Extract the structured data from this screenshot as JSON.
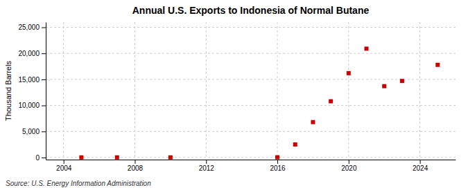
{
  "chart_data": {
    "type": "scatter",
    "title": "Annual U.S. Exports to Indonesia of Normal Butane",
    "ylabel": "Thousand Barrels",
    "source": "Source: U.S. Energy Information Administration",
    "x": [
      2005,
      2007,
      2010,
      2016,
      2017,
      2018,
      2019,
      2020,
      2021,
      2022,
      2023,
      2025
    ],
    "values": [
      30,
      30,
      30,
      50,
      2500,
      6800,
      10800,
      16200,
      20900,
      13700,
      14700,
      17800
    ],
    "color": "#cc0000",
    "marker": "square",
    "xlim": [
      2003,
      2026
    ],
    "ylim": [
      -400,
      26000
    ],
    "xticks": [
      2004,
      2008,
      2012,
      2016,
      2020,
      2024
    ],
    "yticks": [
      0,
      {
        "value": 5000,
        "label": "5,000"
      },
      {
        "value": 10000,
        "label": "10,000"
      },
      {
        "value": 15000,
        "label": "15,000"
      },
      {
        "value": 20000,
        "label": "20,000"
      },
      {
        "value": 25000,
        "label": "25,000"
      }
    ],
    "grid": true
  }
}
